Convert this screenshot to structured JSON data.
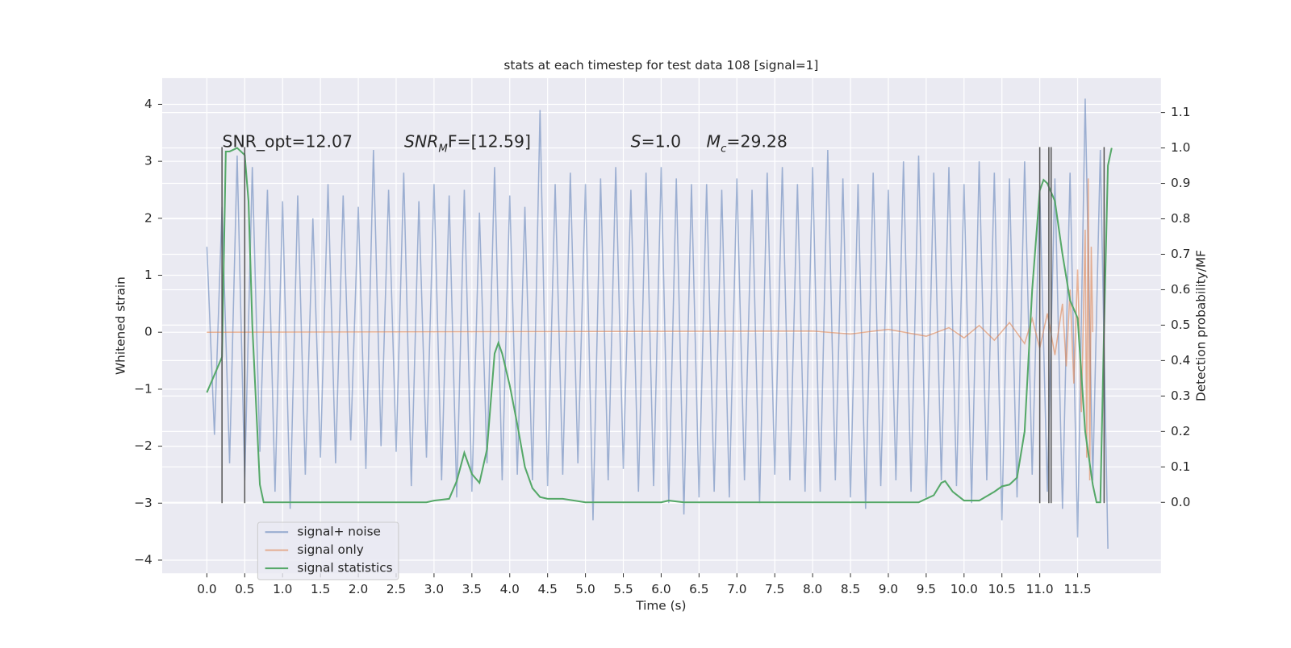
{
  "chart_data": {
    "type": "line",
    "title": "stats at each timestep for test data 108 [signal=1]",
    "xlabel": "Time (s)",
    "ylabel": "Whitened strain",
    "y2label": "Detection probability/MF",
    "xlim": [
      -0.59,
      12.6
    ],
    "ylim": [
      -4.23,
      4.46
    ],
    "y2lim": [
      -0.2,
      1.197
    ],
    "xticks": [
      {
        "value": 0,
        "label": "0.0"
      },
      {
        "value": 0.5,
        "label": "0.5"
      },
      {
        "value": 1,
        "label": "1.0"
      },
      {
        "value": 1.5,
        "label": "1.5"
      },
      {
        "value": 2,
        "label": "2.0"
      },
      {
        "value": 2.5,
        "label": "2.5"
      },
      {
        "value": 3,
        "label": "3.0"
      },
      {
        "value": 3.5,
        "label": "3.5"
      },
      {
        "value": 4,
        "label": "4.0"
      },
      {
        "value": 4.5,
        "label": "4.5"
      },
      {
        "value": 5,
        "label": "5.0"
      },
      {
        "value": 5.5,
        "label": "5.5"
      },
      {
        "value": 6,
        "label": "6.0"
      },
      {
        "value": 6.5,
        "label": "6.5"
      },
      {
        "value": 7,
        "label": "7.0"
      },
      {
        "value": 7.5,
        "label": "7.5"
      },
      {
        "value": 8,
        "label": "8.0"
      },
      {
        "value": 8.5,
        "label": "8.5"
      },
      {
        "value": 9,
        "label": "9.0"
      },
      {
        "value": 9.5,
        "label": "9.5"
      },
      {
        "value": 10,
        "label": "10.0"
      },
      {
        "value": 10.5,
        "label": "10.5"
      },
      {
        "value": 11,
        "label": "11.0"
      },
      {
        "value": 11.5,
        "label": "11.5"
      }
    ],
    "yticks": [
      {
        "value": -4,
        "label": "−4"
      },
      {
        "value": -3,
        "label": "−3"
      },
      {
        "value": -2,
        "label": "−2"
      },
      {
        "value": -1,
        "label": "−1"
      },
      0,
      1,
      2,
      3,
      4
    ],
    "y2ticks": [
      {
        "value": 0,
        "label": "0.0"
      },
      {
        "value": 0.1,
        "label": "0.1"
      },
      {
        "value": 0.2,
        "label": "0.2"
      },
      {
        "value": 0.3,
        "label": "0.3"
      },
      {
        "value": 0.4,
        "label": "0.4"
      },
      {
        "value": 0.5,
        "label": "0.5"
      },
      {
        "value": 0.6,
        "label": "0.6"
      },
      {
        "value": 0.7,
        "label": "0.7"
      },
      {
        "value": 0.8,
        "label": "0.8"
      },
      {
        "value": 0.9,
        "label": "0.9"
      },
      {
        "value": 1,
        "label": "1.0"
      },
      {
        "value": 1.1,
        "label": "1.1"
      }
    ],
    "grid": true,
    "legend": "lower left",
    "series": [
      {
        "name": "signal+ noise",
        "color": "#4c72b0",
        "opacity": 0.5,
        "x": [
          0,
          0.1,
          0.2,
          0.3,
          0.4,
          0.5,
          0.6,
          0.7,
          0.8,
          0.9,
          1,
          1.1,
          1.2,
          1.3,
          1.4,
          1.5,
          1.6,
          1.7,
          1.8,
          1.9,
          2,
          2.1,
          2.2,
          2.3,
          2.4,
          2.5,
          2.6,
          2.7,
          2.8,
          2.9,
          3,
          3.1,
          3.2,
          3.3,
          3.4,
          3.5,
          3.6,
          3.7,
          3.8,
          3.9,
          4,
          4.1,
          4.2,
          4.3,
          4.4,
          4.5,
          4.6,
          4.7,
          4.8,
          4.9,
          5,
          5.1,
          5.2,
          5.3,
          5.4,
          5.5,
          5.6,
          5.7,
          5.8,
          5.9,
          6,
          6.1,
          6.2,
          6.3,
          6.4,
          6.5,
          6.6,
          6.7,
          6.8,
          6.9,
          7,
          7.1,
          7.2,
          7.3,
          7.4,
          7.5,
          7.6,
          7.7,
          7.8,
          7.9,
          8,
          8.1,
          8.2,
          8.3,
          8.4,
          8.5,
          8.6,
          8.7,
          8.8,
          8.9,
          9,
          9.1,
          9.2,
          9.3,
          9.4,
          9.5,
          9.6,
          9.7,
          9.8,
          9.9,
          10,
          10.1,
          10.2,
          10.3,
          10.4,
          10.5,
          10.6,
          10.7,
          10.8,
          10.9,
          11,
          11.1,
          11.2,
          11.3,
          11.4,
          11.5,
          11.6,
          11.7,
          11.8,
          11.9
        ],
        "values": [
          1.5,
          -1.8,
          2.2,
          -2.3,
          3.1,
          -2.6,
          2.9,
          -2.1,
          2.5,
          -2.8,
          2.3,
          -3.1,
          2.4,
          -2.5,
          2.0,
          -2.2,
          2.6,
          -2.3,
          2.4,
          -1.9,
          2.2,
          -2.4,
          3.2,
          -2.0,
          2.5,
          -2.1,
          2.8,
          -2.7,
          2.3,
          -2.2,
          2.6,
          -2.6,
          2.4,
          -2.9,
          2.5,
          -2.8,
          2.1,
          -2.3,
          2.9,
          -2.6,
          2.4,
          -2.5,
          2.2,
          -2.6,
          3.9,
          -2.7,
          2.6,
          -2.5,
          2.8,
          -2.3,
          2.6,
          -3.3,
          2.7,
          -2.6,
          2.9,
          -2.4,
          2.5,
          -2.8,
          2.8,
          -2.7,
          2.9,
          -3.0,
          2.7,
          -3.2,
          2.6,
          -2.9,
          2.6,
          -2.8,
          2.5,
          -2.9,
          2.7,
          -2.6,
          2.5,
          -3.0,
          2.8,
          -2.5,
          2.9,
          -2.6,
          2.6,
          -2.8,
          2.9,
          -2.8,
          3.2,
          -2.6,
          2.7,
          -2.9,
          2.6,
          -3.1,
          2.8,
          -2.7,
          2.5,
          -2.6,
          3.0,
          -2.8,
          3.1,
          -2.9,
          2.8,
          -2.6,
          2.9,
          -2.7,
          2.6,
          -3.0,
          3.0,
          -2.6,
          2.8,
          -3.3,
          2.7,
          -2.9,
          3.0,
          -2.5,
          2.5,
          -2.8,
          2.7,
          -3.1,
          2.8,
          -3.6,
          4.1,
          -2.6,
          3.2,
          -3.8
        ]
      },
      {
        "name": "signal only",
        "color": "#dd8452",
        "opacity": 0.6,
        "x": [
          0,
          8.0,
          8.5,
          9.0,
          9.5,
          9.8,
          10.0,
          10.2,
          10.4,
          10.6,
          10.8,
          10.9,
          11.0,
          11.1,
          11.2,
          11.3,
          11.35,
          11.4,
          11.45,
          11.5,
          11.55,
          11.6,
          11.62,
          11.64,
          11.66,
          11.68,
          11.7
        ],
        "values": [
          0,
          0.02,
          -0.03,
          0.05,
          -0.07,
          0.08,
          -0.1,
          0.12,
          -0.14,
          0.17,
          -0.2,
          0.24,
          -0.28,
          0.33,
          -0.4,
          0.5,
          -0.6,
          0.75,
          -0.9,
          1.1,
          -1.4,
          1.8,
          -2.2,
          2.7,
          -2.6,
          1.5,
          0
        ]
      },
      {
        "name": "signal statistics",
        "color": "#55a868",
        "opacity": 1,
        "axis": "y2",
        "x": [
          0,
          0.2,
          0.25,
          0.3,
          0.4,
          0.5,
          0.55,
          0.6,
          0.7,
          0.75,
          2.9,
          3.0,
          3.2,
          3.3,
          3.4,
          3.5,
          3.6,
          3.7,
          3.8,
          3.85,
          3.9,
          4.0,
          4.1,
          4.2,
          4.3,
          4.4,
          4.5,
          4.7,
          5.0,
          6.0,
          6.1,
          6.3,
          9.4,
          9.6,
          9.7,
          9.75,
          9.85,
          10.0,
          10.2,
          10.4,
          10.5,
          10.6,
          10.7,
          10.8,
          10.9,
          11.0,
          11.05,
          11.1,
          11.2,
          11.3,
          11.4,
          11.5,
          11.6,
          11.7,
          11.75,
          11.8,
          11.85,
          11.9,
          11.95
        ],
        "values": [
          0.31,
          0.41,
          0.99,
          0.99,
          1.0,
          0.98,
          0.85,
          0.5,
          0.05,
          0.0,
          0.0,
          0.005,
          0.01,
          0.06,
          0.14,
          0.08,
          0.055,
          0.15,
          0.42,
          0.45,
          0.42,
          0.33,
          0.22,
          0.1,
          0.04,
          0.015,
          0.01,
          0.01,
          0.0,
          0.0,
          0.005,
          0.0,
          0.0,
          0.02,
          0.055,
          0.06,
          0.03,
          0.005,
          0.005,
          0.03,
          0.045,
          0.05,
          0.07,
          0.2,
          0.6,
          0.88,
          0.91,
          0.9,
          0.85,
          0.7,
          0.57,
          0.52,
          0.2,
          0.05,
          0.0,
          0.0,
          0.5,
          0.95,
          1.0
        ]
      }
    ],
    "vlines": {
      "x": [
        0.2,
        0.5,
        11.0,
        11.12,
        11.15,
        11.85
      ],
      "ymin": -3,
      "ymax": 3.25,
      "color": "#555555"
    },
    "annotations": [
      {
        "parts": [
          {
            "text": "SNR_opt=12.07",
            "style": "normal"
          }
        ]
      },
      {
        "parts": [
          {
            "text": "SNR",
            "style": "italic"
          },
          {
            "text": "M",
            "style": "sub"
          },
          {
            "text": "F=[12.59]",
            "style": "normal"
          }
        ]
      },
      {
        "parts": [
          {
            "text": "S",
            "style": "italic"
          },
          {
            "text": "=1.0",
            "style": "normal"
          }
        ]
      },
      {
        "parts": [
          {
            "text": "M",
            "style": "italic"
          },
          {
            "text": "c",
            "style": "sub"
          },
          {
            "text": "=29.28",
            "style": "normal"
          }
        ]
      }
    ]
  }
}
